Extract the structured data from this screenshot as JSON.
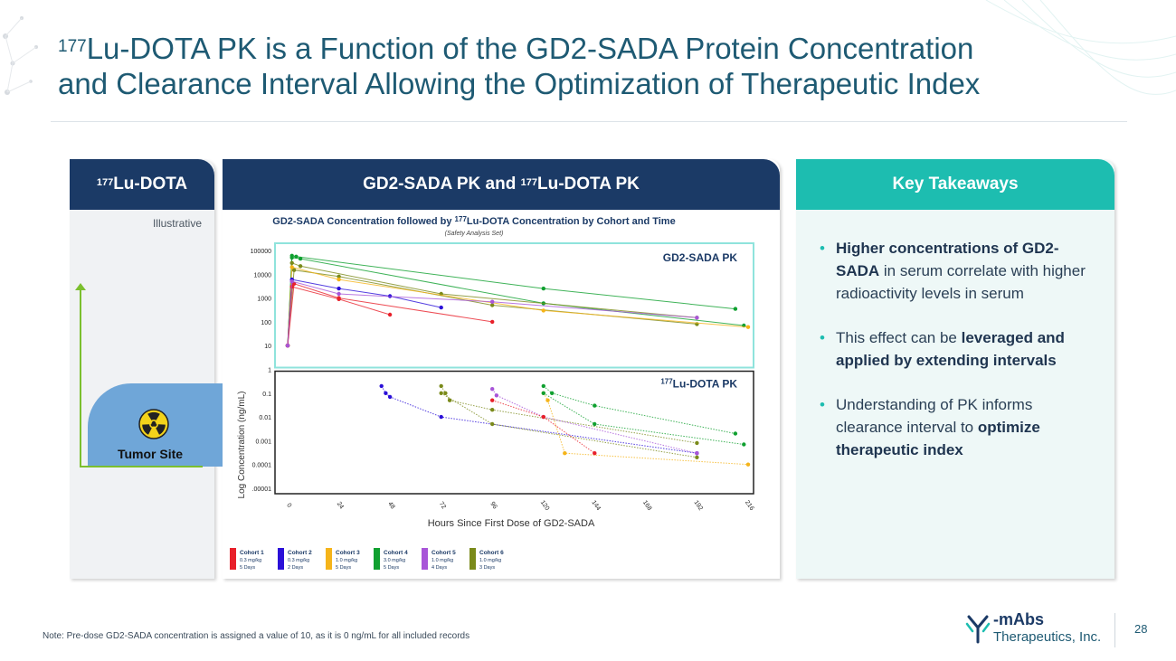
{
  "title": {
    "sup": "177",
    "line1": "Lu-DOTA PK is a Function of the GD2-SADA Protein Concentration",
    "line2": "and Clearance Interval Allowing the Optimization of Therapeutic Index"
  },
  "panel_left": {
    "header_sup": "177",
    "header": "Lu-DOTA",
    "illustrative": "Illustrative",
    "tumor_label": "Tumor Site"
  },
  "panel_mid": {
    "header_pre": "GD2-SADA PK and ",
    "header_sup": "177",
    "header_post": "Lu-DOTA PK"
  },
  "panel_right": {
    "header": "Key Takeaways",
    "bullets": [
      {
        "bold": "Higher concentrations of GD2-SADA",
        "rest": " in serum correlate with higher radioactivity levels in serum"
      },
      {
        "pre": "This effect can be ",
        "bold": "leveraged and applied by extending intervals"
      },
      {
        "pre": "Understanding of PK informs clearance interval to ",
        "bold": "optimize therapeutic index"
      }
    ]
  },
  "chart_data": {
    "type": "scatter",
    "title_pre": "GD2-SADA Concentration followed by ",
    "title_sup": "177",
    "title_post": "Lu-DOTA Concentration by Cohort and Time",
    "subtitle": "(Safety Analysis Set)",
    "xlabel": "Hours Since First Dose of GD2-SADA",
    "ylabel": "Log Concentration (ng/mL)",
    "x_ticks": [
      "0",
      "24",
      "48",
      "72",
      "96",
      "120",
      "144",
      "168",
      "192",
      "216"
    ],
    "xlim": [
      0,
      216
    ],
    "y_ticks": [
      "100000",
      "10000",
      "1000",
      "100",
      "10",
      "1",
      "0.1",
      "0.01",
      "0.001",
      "0.0001",
      ".00001"
    ],
    "ylim_log": [
      -5,
      5
    ],
    "panel_label_top": "GD2-SADA PK",
    "panel_label_bottom_sup": "177",
    "panel_label_bottom": "Lu-DOTA PK",
    "legend": [
      {
        "name": "Cohort 1",
        "dose": "0.3 mg/kg",
        "interval": "5 Days",
        "color": "#e8202a"
      },
      {
        "name": "Cohort 2",
        "dose": "0.3 mg/kg",
        "interval": "2 Days",
        "color": "#2b10d8"
      },
      {
        "name": "Cohort 3",
        "dose": "1.0 mg/kg",
        "interval": "5 Days",
        "color": "#f5b41a"
      },
      {
        "name": "Cohort 4",
        "dose": "3.0 mg/kg",
        "interval": "5 Days",
        "color": "#10a030"
      },
      {
        "name": "Cohort 5",
        "dose": "1.0 mg/kg",
        "interval": "4 Days",
        "color": "#a855d8"
      },
      {
        "name": "Cohort 6",
        "dose": "1.0 mg/kg",
        "interval": "3 Days",
        "color": "#7a8a1a"
      }
    ],
    "series_gd2sada": [
      {
        "cohort": "Cohort 4",
        "points": [
          [
            0,
            10
          ],
          [
            2,
            60000
          ],
          [
            4,
            55000
          ],
          [
            120,
            2500
          ],
          [
            210,
            350
          ]
        ]
      },
      {
        "cohort": "Cohort 4",
        "points": [
          [
            0,
            10
          ],
          [
            2,
            50000
          ],
          [
            6,
            45000
          ],
          [
            120,
            600
          ],
          [
            214,
            70
          ]
        ]
      },
      {
        "cohort": "Cohort 6",
        "points": [
          [
            0,
            10
          ],
          [
            2,
            30000
          ],
          [
            6,
            22000
          ],
          [
            72,
            1500
          ],
          [
            192,
            150
          ]
        ]
      },
      {
        "cohort": "Cohort 6",
        "points": [
          [
            0,
            10
          ],
          [
            3,
            15000
          ],
          [
            24,
            8000
          ],
          [
            96,
            500
          ],
          [
            192,
            80
          ]
        ]
      },
      {
        "cohort": "Cohort 3",
        "points": [
          [
            0,
            10
          ],
          [
            2,
            20000
          ],
          [
            24,
            6000
          ],
          [
            120,
            300
          ],
          [
            216,
            60
          ]
        ]
      },
      {
        "cohort": "Cohort 2",
        "points": [
          [
            0,
            10
          ],
          [
            2,
            6000
          ],
          [
            24,
            2500
          ],
          [
            48,
            1200
          ],
          [
            72,
            400
          ]
        ]
      },
      {
        "cohort": "Cohort 1",
        "points": [
          [
            0,
            10
          ],
          [
            2,
            3000
          ],
          [
            24,
            900
          ],
          [
            48,
            200
          ]
        ]
      },
      {
        "cohort": "Cohort 1",
        "points": [
          [
            0,
            10
          ],
          [
            3,
            4000
          ],
          [
            24,
            1000
          ],
          [
            96,
            100
          ]
        ]
      },
      {
        "cohort": "Cohort 5",
        "points": [
          [
            0,
            10
          ],
          [
            2,
            5000
          ],
          [
            24,
            1500
          ],
          [
            96,
            700
          ],
          [
            192,
            150
          ]
        ]
      }
    ],
    "series_lu177": [
      {
        "cohort": "Cohort 2",
        "points": [
          [
            44,
            0.2
          ],
          [
            46,
            0.1
          ],
          [
            48,
            0.07
          ],
          [
            72,
            0.01
          ],
          [
            192,
            0.0003
          ]
        ]
      },
      {
        "cohort": "Cohort 6",
        "points": [
          [
            72,
            0.2
          ],
          [
            74,
            0.1
          ],
          [
            76,
            0.05
          ],
          [
            96,
            0.02
          ],
          [
            192,
            0.0008
          ]
        ]
      },
      {
        "cohort": "Cohort 6",
        "points": [
          [
            72,
            0.1
          ],
          [
            96,
            0.005
          ],
          [
            192,
            0.0002
          ]
        ]
      },
      {
        "cohort": "Cohort 5",
        "points": [
          [
            96,
            0.15
          ],
          [
            98,
            0.08
          ],
          [
            120,
            0.01
          ],
          [
            192,
            0.0003
          ]
        ]
      },
      {
        "cohort": "Cohort 3",
        "points": [
          [
            120,
            0.1
          ],
          [
            122,
            0.05
          ],
          [
            130,
            0.0003
          ],
          [
            216,
            0.0001
          ]
        ]
      },
      {
        "cohort": "Cohort 4",
        "points": [
          [
            120,
            0.2
          ],
          [
            124,
            0.1
          ],
          [
            144,
            0.03
          ],
          [
            210,
            0.002
          ]
        ]
      },
      {
        "cohort": "Cohort 4",
        "points": [
          [
            120,
            0.1
          ],
          [
            144,
            0.005
          ],
          [
            214,
            0.0007
          ]
        ]
      },
      {
        "cohort": "Cohort 1",
        "points": [
          [
            96,
            0.05
          ],
          [
            120,
            0.01
          ],
          [
            144,
            0.0003
          ]
        ]
      }
    ]
  },
  "note": "Note: Pre-dose GD2-SADA concentration is assigned a value of 10, as it is 0 ng/mL for all included records",
  "logo": {
    "line1": "mAbs",
    "line2": "Therapeutics, Inc."
  },
  "page_number": "28",
  "colors": {
    "navy": "#1b3a66",
    "teal": "#1dbdb0",
    "title": "#1e5a73"
  }
}
